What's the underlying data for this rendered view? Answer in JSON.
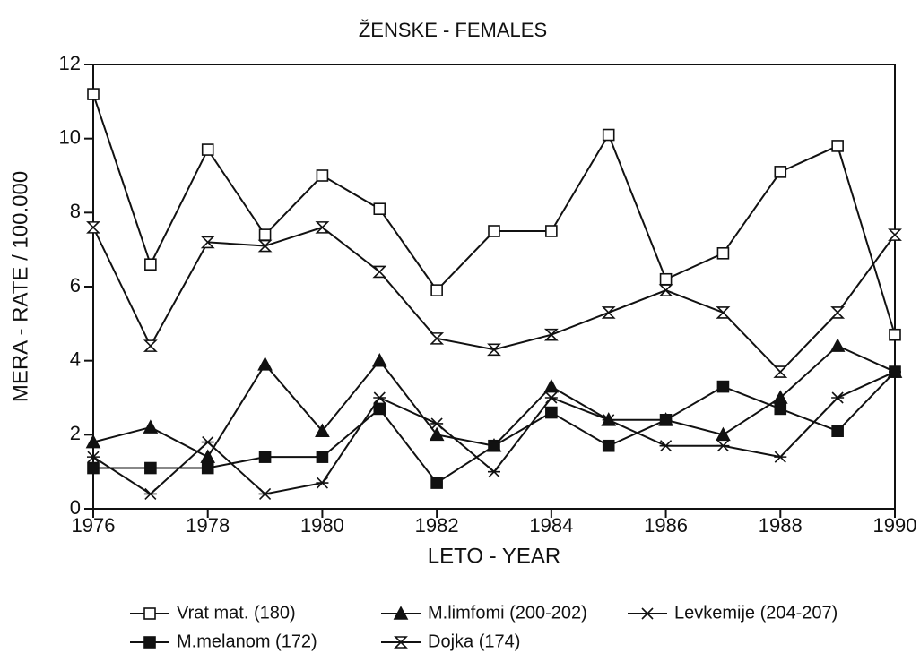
{
  "chart_data": {
    "type": "line",
    "title": "ŽENSKE - FEMALES",
    "x_label": "LETO - YEAR",
    "y_label": "MERA - RATE / 100.000",
    "x": [
      1976,
      1977,
      1978,
      1979,
      1980,
      1981,
      1982,
      1983,
      1984,
      1985,
      1986,
      1987,
      1988,
      1989,
      1990
    ],
    "xlim": [
      1976,
      1990
    ],
    "xticks": [
      1976,
      1978,
      1980,
      1982,
      1984,
      1986,
      1988,
      1990
    ],
    "ylim": [
      0,
      12
    ],
    "yticks": [
      0,
      2,
      4,
      6,
      8,
      10,
      12
    ],
    "grid": false,
    "legend": "bottom",
    "series": [
      {
        "name": "Vrat mat. (180)",
        "color": "#111111",
        "marker": "square-open",
        "values": [
          11.2,
          6.6,
          9.7,
          7.4,
          9.0,
          8.1,
          5.9,
          7.5,
          7.5,
          10.1,
          6.2,
          6.9,
          9.1,
          9.8,
          4.7
        ]
      },
      {
        "name": "M.limfomi (200-202)",
        "color": "#111111",
        "marker": "triangle-filled",
        "values": [
          1.8,
          2.2,
          1.4,
          3.9,
          2.1,
          4.0,
          2.0,
          1.7,
          3.3,
          2.4,
          2.4,
          2.0,
          3.0,
          4.4,
          3.7
        ]
      },
      {
        "name": "Levkemije (204-207)",
        "color": "#111111",
        "marker": "star",
        "values": [
          1.4,
          0.4,
          1.8,
          0.4,
          0.7,
          3.0,
          2.3,
          1.0,
          3.0,
          2.4,
          1.7,
          1.7,
          1.4,
          3.0,
          3.7
        ]
      },
      {
        "name": "M.melanom (172)",
        "color": "#111111",
        "marker": "square-filled",
        "values": [
          1.1,
          1.1,
          1.1,
          1.4,
          1.4,
          2.7,
          0.7,
          1.7,
          2.6,
          1.7,
          2.4,
          3.3,
          2.7,
          2.1,
          3.7
        ]
      },
      {
        "name": "Dojka (174)",
        "color": "#111111",
        "marker": "hourglass",
        "values": [
          7.6,
          4.4,
          7.2,
          7.1,
          7.6,
          6.4,
          4.6,
          4.3,
          4.7,
          5.3,
          5.9,
          5.3,
          3.7,
          5.3,
          7.4
        ]
      }
    ]
  }
}
